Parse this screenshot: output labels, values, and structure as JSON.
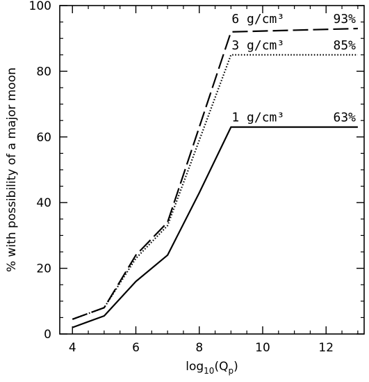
{
  "chart_data": {
    "type": "line",
    "xlabel": "log10(Qp)",
    "ylabel": "% with possibility of a major moon",
    "xlim": [
      3.6,
      13.2
    ],
    "ylim": [
      0,
      100
    ],
    "xticks": [
      4,
      6,
      8,
      10,
      12
    ],
    "yticks": [
      0,
      20,
      40,
      60,
      80,
      100
    ],
    "grid": false,
    "series": [
      {
        "name": "6 g/cm³",
        "style": "dashed",
        "end_label": "93%",
        "x": [
          4,
          5,
          6,
          7,
          8,
          9,
          13
        ],
        "y": [
          4.5,
          8,
          24,
          34,
          63,
          92,
          93
        ]
      },
      {
        "name": "3 g/cm³",
        "style": "dotted",
        "end_label": "85%",
        "x": [
          4,
          5,
          6,
          7,
          8,
          9,
          13
        ],
        "y": [
          4.5,
          8,
          23,
          33,
          59,
          85,
          85
        ]
      },
      {
        "name": "1 g/cm³",
        "style": "solid",
        "end_label": "63%",
        "x": [
          4,
          5,
          6,
          7,
          8,
          9,
          13
        ],
        "y": [
          2,
          5.5,
          16,
          24,
          43,
          63,
          63
        ]
      }
    ]
  }
}
